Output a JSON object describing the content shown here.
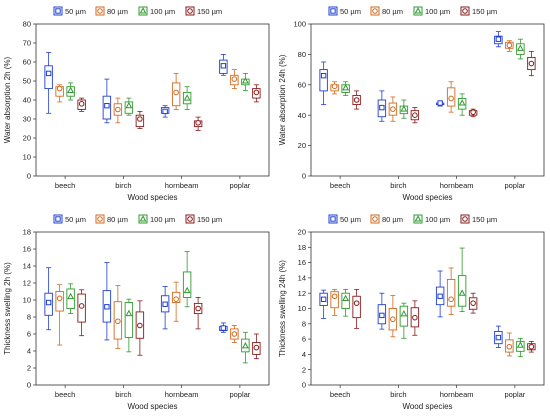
{
  "chart_data": [
    {
      "type": "box",
      "ylabel": "Water absorption 2h (%)",
      "xlabel": "Wood species",
      "ylim": [
        0,
        80
      ],
      "yticks": [
        0,
        10,
        20,
        30,
        40,
        50,
        60,
        70,
        80
      ],
      "categories": [
        "beech",
        "birch",
        "hornbeam",
        "poplar"
      ],
      "series": [
        {
          "name": "50 µm",
          "color": "#1f3fd1",
          "marker": "square",
          "stats": [
            {
              "min": 33,
              "q1": 46,
              "median": 54,
              "q3": 58,
              "max": 65
            },
            {
              "min": 28,
              "q1": 30,
              "median": 37,
              "q3": 42,
              "max": 51
            },
            {
              "min": 31,
              "q1": 33,
              "median": 34,
              "q3": 36,
              "max": 37
            },
            {
              "min": 53,
              "q1": 54,
              "median": 58,
              "q3": 61,
              "max": 64
            }
          ]
        },
        {
          "name": "80 µm",
          "color": "#d2691e",
          "marker": "circle",
          "stats": [
            {
              "min": 39,
              "q1": 42,
              "median": 46,
              "q3": 47,
              "max": 48
            },
            {
              "min": 28,
              "q1": 32,
              "median": 35,
              "q3": 38,
              "max": 41
            },
            {
              "min": 35,
              "q1": 37,
              "median": 44,
              "q3": 49,
              "max": 54
            },
            {
              "min": 46,
              "q1": 48,
              "median": 51,
              "q3": 53,
              "max": 56
            }
          ]
        },
        {
          "name": "100 µm",
          "color": "#2e9a2e",
          "marker": "triangle",
          "stats": [
            {
              "min": 40,
              "q1": 42,
              "median": 45,
              "q3": 47,
              "max": 49
            },
            {
              "min": 32,
              "q1": 33,
              "median": 37,
              "q3": 39,
              "max": 41
            },
            {
              "min": 35,
              "q1": 38,
              "median": 41,
              "q3": 44,
              "max": 47
            },
            {
              "min": 45,
              "q1": 48,
              "median": 50,
              "q3": 51,
              "max": 54
            }
          ]
        },
        {
          "name": "150 µm",
          "color": "#8b1a1a",
          "marker": "circle",
          "stats": [
            {
              "min": 34,
              "q1": 35,
              "median": 38,
              "q3": 40,
              "max": 41
            },
            {
              "min": 25,
              "q1": 26,
              "median": 30,
              "q3": 32,
              "max": 34
            },
            {
              "min": 24,
              "q1": 26,
              "median": 28,
              "q3": 29,
              "max": 31
            },
            {
              "min": 39,
              "q1": 41,
              "median": 44,
              "q3": 46,
              "max": 48
            }
          ]
        }
      ]
    },
    {
      "type": "box",
      "ylabel": "Water absorption 24h (%)",
      "xlabel": "Wood species",
      "ylim": [
        0,
        100
      ],
      "yticks": [
        0,
        20,
        40,
        60,
        80,
        100
      ],
      "categories": [
        "beech",
        "birch",
        "hornbeam",
        "poplar"
      ],
      "series": [
        {
          "name": "50 µm",
          "color": "#1f3fd1",
          "marker": "square",
          "stats": [
            {
              "min": 47,
              "q1": 56,
              "median": 66,
              "q3": 70,
              "max": 75
            },
            {
              "min": 36,
              "q1": 39,
              "median": 45,
              "q3": 50,
              "max": 56
            },
            {
              "min": 46,
              "q1": 47,
              "median": 48,
              "q3": 48,
              "max": 49
            },
            {
              "min": 85,
              "q1": 87,
              "median": 90,
              "q3": 92,
              "max": 95
            }
          ]
        },
        {
          "name": "80 µm",
          "color": "#d2691e",
          "marker": "circle",
          "stats": [
            {
              "min": 54,
              "q1": 56,
              "median": 59,
              "q3": 60,
              "max": 62
            },
            {
              "min": 36,
              "q1": 40,
              "median": 44,
              "q3": 48,
              "max": 52
            },
            {
              "min": 42,
              "q1": 46,
              "median": 51,
              "q3": 58,
              "max": 62
            },
            {
              "min": 82,
              "q1": 84,
              "median": 86,
              "q3": 88,
              "max": 89
            }
          ]
        },
        {
          "name": "100 µm",
          "color": "#2e9a2e",
          "marker": "triangle",
          "stats": [
            {
              "min": 53,
              "q1": 55,
              "median": 58,
              "q3": 60,
              "max": 62
            },
            {
              "min": 38,
              "q1": 41,
              "median": 44,
              "q3": 46,
              "max": 50
            },
            {
              "min": 40,
              "q1": 44,
              "median": 48,
              "q3": 51,
              "max": 54
            },
            {
              "min": 77,
              "q1": 80,
              "median": 84,
              "q3": 87,
              "max": 90
            }
          ]
        },
        {
          "name": "150 µm",
          "color": "#8b1a1a",
          "marker": "circle",
          "stats": [
            {
              "min": 44,
              "q1": 47,
              "median": 50,
              "q3": 53,
              "max": 56
            },
            {
              "min": 35,
              "q1": 37,
              "median": 40,
              "q3": 43,
              "max": 45
            },
            {
              "min": 39,
              "q1": 40,
              "median": 42,
              "q3": 43,
              "max": 44
            },
            {
              "min": 66,
              "q1": 70,
              "median": 74,
              "q3": 78,
              "max": 82
            }
          ]
        }
      ]
    },
    {
      "type": "box",
      "ylabel": "Thickness swelling 2h (%)",
      "xlabel": "Wood species",
      "ylim": [
        0,
        18
      ],
      "yticks": [
        0,
        2,
        4,
        6,
        8,
        10,
        12,
        14,
        16,
        18
      ],
      "categories": [
        "beech",
        "birch",
        "hornbeam",
        "poplar"
      ],
      "series": [
        {
          "name": "50 µm",
          "color": "#1f3fd1",
          "marker": "square",
          "stats": [
            {
              "min": 6.5,
              "q1": 8.2,
              "median": 9.7,
              "q3": 10.8,
              "max": 13.8
            },
            {
              "min": 5.3,
              "q1": 7.4,
              "median": 9.2,
              "q3": 11.1,
              "max": 14.4
            },
            {
              "min": 6.6,
              "q1": 8.6,
              "median": 9.5,
              "q3": 10.5,
              "max": 11.6
            },
            {
              "min": 6.2,
              "q1": 6.4,
              "median": 6.7,
              "q3": 6.9,
              "max": 7.3
            }
          ]
        },
        {
          "name": "80 µm",
          "color": "#d2691e",
          "marker": "circle",
          "stats": [
            {
              "min": 4.7,
              "q1": 8.7,
              "median": 10.2,
              "q3": 11.0,
              "max": 11.8
            },
            {
              "min": 4.3,
              "q1": 5.4,
              "median": 7.5,
              "q3": 9.8,
              "max": 11.7
            },
            {
              "min": 7.5,
              "q1": 9.7,
              "median": 10.1,
              "q3": 10.9,
              "max": 12.1
            },
            {
              "min": 5.0,
              "q1": 5.4,
              "median": 6.0,
              "q3": 6.6,
              "max": 7.0
            }
          ]
        },
        {
          "name": "100 µm",
          "color": "#2e9a2e",
          "marker": "triangle",
          "stats": [
            {
              "min": 8.4,
              "q1": 9.0,
              "median": 10.4,
              "q3": 11.3,
              "max": 11.9
            },
            {
              "min": 3.9,
              "q1": 5.6,
              "median": 8.4,
              "q3": 9.7,
              "max": 10.1
            },
            {
              "min": 9.2,
              "q1": 10.3,
              "median": 11.1,
              "q3": 13.3,
              "max": 15.7
            },
            {
              "min": 2.6,
              "q1": 3.9,
              "median": 4.6,
              "q3": 5.4,
              "max": 6.2
            }
          ]
        },
        {
          "name": "150 µm",
          "color": "#8b1a1a",
          "marker": "circle",
          "stats": [
            {
              "min": 5.8,
              "q1": 7.4,
              "median": 9.3,
              "q3": 10.7,
              "max": 11.2
            },
            {
              "min": 3.5,
              "q1": 5.5,
              "median": 7.0,
              "q3": 8.6,
              "max": 9.9
            },
            {
              "min": 6.6,
              "q1": 8.4,
              "median": 9.0,
              "q3": 9.6,
              "max": 10.3
            },
            {
              "min": 3.1,
              "q1": 3.6,
              "median": 4.4,
              "q3": 5.0,
              "max": 6.0
            }
          ]
        }
      ]
    },
    {
      "type": "box",
      "ylabel": "Thickness swelling 24h (%)",
      "xlabel": "Wood species",
      "ylim": [
        0,
        20
      ],
      "yticks": [
        0,
        2,
        4,
        6,
        8,
        10,
        12,
        14,
        16,
        18,
        20
      ],
      "categories": [
        "beech",
        "birch",
        "hornbeam",
        "poplar"
      ],
      "series": [
        {
          "name": "50 µm",
          "color": "#1f3fd1",
          "marker": "square",
          "stats": [
            {
              "min": 8.7,
              "q1": 10.4,
              "median": 11.2,
              "q3": 12.0,
              "max": 12.4
            },
            {
              "min": 7.3,
              "q1": 8.0,
              "median": 9.1,
              "q3": 10.5,
              "max": 12.0
            },
            {
              "min": 8.9,
              "q1": 10.5,
              "median": 11.6,
              "q3": 12.8,
              "max": 14.9
            },
            {
              "min": 4.9,
              "q1": 5.4,
              "median": 6.2,
              "q3": 7.0,
              "max": 7.7
            }
          ]
        },
        {
          "name": "80 µm",
          "color": "#d2691e",
          "marker": "circle",
          "stats": [
            {
              "min": 9.1,
              "q1": 10.1,
              "median": 11.6,
              "q3": 12.2,
              "max": 12.5
            },
            {
              "min": 6.3,
              "q1": 7.2,
              "median": 8.6,
              "q3": 10.0,
              "max": 11.7
            },
            {
              "min": 9.2,
              "q1": 10.3,
              "median": 11.2,
              "q3": 13.8,
              "max": 15.3
            },
            {
              "min": 3.8,
              "q1": 4.3,
              "median": 5.0,
              "q3": 5.9,
              "max": 6.8
            }
          ]
        },
        {
          "name": "100 µm",
          "color": "#2e9a2e",
          "marker": "triangle",
          "stats": [
            {
              "min": 9.0,
              "q1": 10.0,
              "median": 11.3,
              "q3": 12.0,
              "max": 12.5
            },
            {
              "min": 6.1,
              "q1": 7.7,
              "median": 9.3,
              "q3": 10.3,
              "max": 10.7
            },
            {
              "min": 9.6,
              "q1": 10.3,
              "median": 12.0,
              "q3": 14.3,
              "max": 17.9
            },
            {
              "min": 3.7,
              "q1": 4.4,
              "median": 5.2,
              "q3": 5.7,
              "max": 6.1
            }
          ]
        },
        {
          "name": "150 µm",
          "color": "#8b1a1a",
          "marker": "circle",
          "stats": [
            {
              "min": 7.4,
              "q1": 8.8,
              "median": 10.7,
              "q3": 11.6,
              "max": 12.5
            },
            {
              "min": 6.5,
              "q1": 7.6,
              "median": 8.8,
              "q3": 10.1,
              "max": 11.0
            },
            {
              "min": 9.4,
              "q1": 9.9,
              "median": 10.7,
              "q3": 11.4,
              "max": 12.0
            },
            {
              "min": 4.3,
              "q1": 4.6,
              "median": 5.0,
              "q3": 5.4,
              "max": 5.7
            }
          ]
        }
      ]
    }
  ]
}
